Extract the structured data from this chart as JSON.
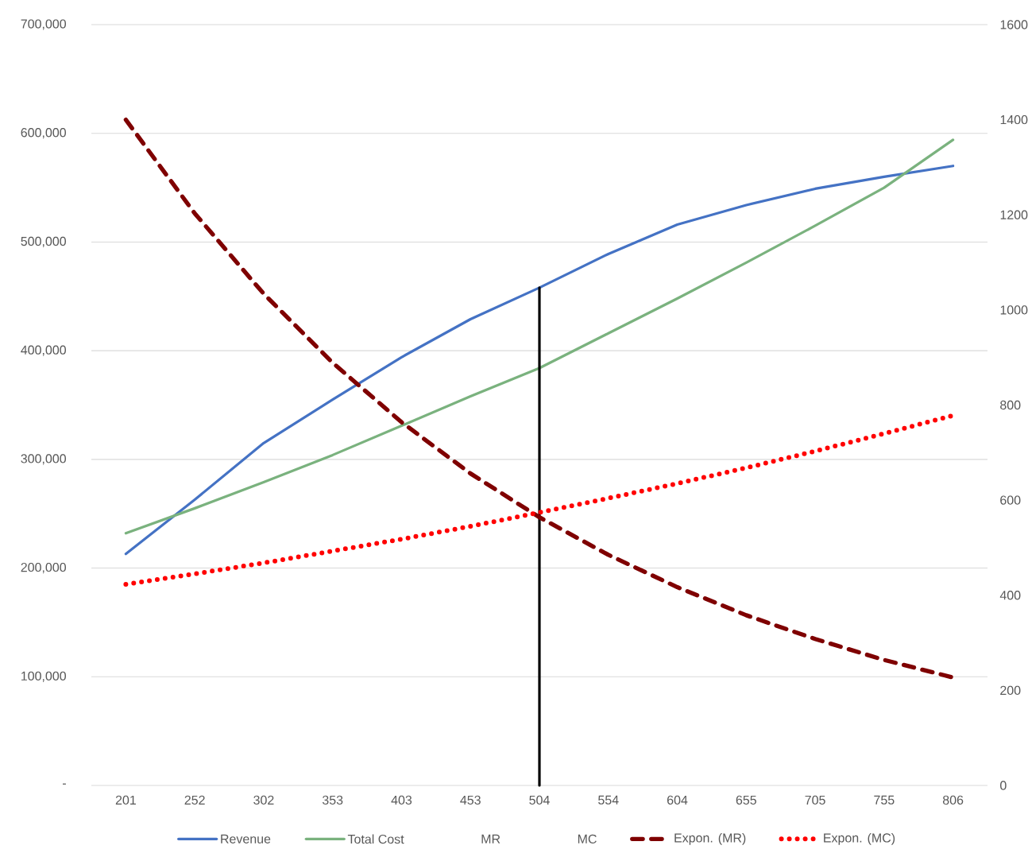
{
  "chart_data": {
    "type": "line",
    "categories": [
      "201",
      "252",
      "302",
      "353",
      "403",
      "453",
      "504",
      "554",
      "604",
      "655",
      "705",
      "755",
      "806"
    ],
    "series": [
      {
        "name": "Revenue",
        "color": "#4472c4",
        "line_style": "solid",
        "values": [
          213000,
          263000,
          315000,
          355000,
          394000,
          429000,
          458000,
          489000,
          516000,
          534000,
          549000,
          560000,
          570000
        ]
      },
      {
        "name": "Total Cost",
        "color": "#7ab27e",
        "line_style": "solid",
        "values": [
          232000,
          255000,
          279000,
          304000,
          331000,
          358000,
          384000,
          416000,
          448000,
          481000,
          515000,
          550000,
          594000
        ]
      },
      {
        "name": "MR",
        "color": null,
        "axis": "y2",
        "values": [
          null,
          null,
          null,
          null,
          null,
          null,
          null,
          null,
          null,
          null,
          null,
          null,
          null
        ]
      },
      {
        "name": "MC",
        "color": null,
        "axis": "y2",
        "values": [
          null,
          null,
          null,
          null,
          null,
          null,
          null,
          null,
          null,
          null,
          null,
          null,
          null
        ]
      },
      {
        "name": "Expon. (MR)",
        "color": "#7f0000",
        "line_style": "dashed",
        "axis": "y2",
        "values": [
          1400,
          1203,
          1034,
          889,
          764,
          656,
          564,
          485,
          417,
          358,
          308,
          264,
          227
        ]
      },
      {
        "name": "Expon. (MC)",
        "color": "#ff0000",
        "line_style": "dotted",
        "axis": "y2",
        "values": [
          423,
          445,
          468,
          493,
          518,
          545,
          574,
          604,
          635,
          668,
          703,
          740,
          778
        ]
      },
      {
        "color": "#000000",
        "line_style": "solid",
        "x": [
          "504",
          "504"
        ],
        "values": [
          458000,
          0
        ]
      }
    ],
    "ylim": [
      0,
      700000
    ],
    "yticks": [
      {
        "value": 0,
        "label": "-"
      },
      {
        "value": 100000,
        "label": "100,000"
      },
      {
        "value": 200000,
        "label": "200,000"
      },
      {
        "value": 300000,
        "label": "300,000"
      },
      {
        "value": 400000,
        "label": "400,000"
      },
      {
        "value": 500000,
        "label": "500,000"
      },
      {
        "value": 600000,
        "label": "600,000"
      },
      {
        "value": 700000,
        "label": "700,000"
      }
    ],
    "y2lim": [
      0,
      1600
    ],
    "y2ticks": [
      0,
      200,
      400,
      600,
      800,
      1000,
      1200,
      1400,
      1600
    ],
    "grid": "y",
    "legend": "bottom"
  }
}
